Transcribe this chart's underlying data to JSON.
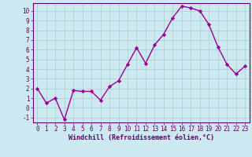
{
  "x": [
    0,
    1,
    2,
    3,
    4,
    5,
    6,
    7,
    8,
    9,
    10,
    11,
    12,
    13,
    14,
    15,
    16,
    17,
    18,
    19,
    20,
    21,
    22,
    23
  ],
  "y": [
    2,
    0.5,
    1,
    -1.2,
    1.8,
    1.7,
    1.7,
    0.8,
    2.2,
    2.8,
    4.5,
    6.2,
    4.6,
    6.5,
    7.6,
    9.3,
    10.5,
    10.3,
    10.0,
    8.6,
    6.3,
    4.5,
    3.5,
    4.3
  ],
  "line_color": "#990099",
  "marker": "D",
  "marker_size": 2.2,
  "bg_color": "#cce8f0",
  "grid_color": "#aacccc",
  "xlabel": "Windchill (Refroidissement éolien,°C)",
  "xlabel_color": "#660066",
  "tick_color": "#660066",
  "spine_color": "#660066",
  "ylim": [
    -1.5,
    10.8
  ],
  "xlim": [
    -0.5,
    23.5
  ],
  "yticks": [
    -1,
    0,
    1,
    2,
    3,
    4,
    5,
    6,
    7,
    8,
    9,
    10
  ],
  "xticks": [
    0,
    1,
    2,
    3,
    4,
    5,
    6,
    7,
    8,
    9,
    10,
    11,
    12,
    13,
    14,
    15,
    16,
    17,
    18,
    19,
    20,
    21,
    22,
    23
  ],
  "tick_fontsize": 5.5,
  "xlabel_fontsize": 6.0,
  "linewidth": 1.0
}
